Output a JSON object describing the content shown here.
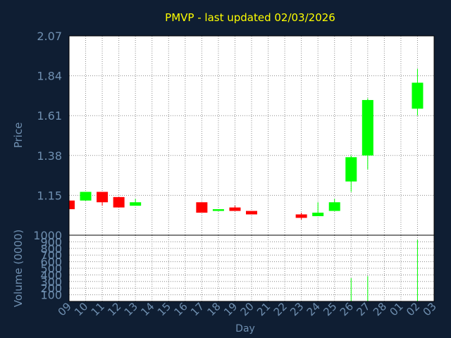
{
  "chart_data": [
    {
      "type": "candlestick",
      "title": "PMVP - last updated 02/03/2026",
      "ylabel": "Price",
      "ylim": [
        0.92,
        2.07
      ],
      "yticks": [
        "1.15",
        "1.38",
        "1.61",
        "1.84",
        "2.07"
      ],
      "categories": [
        "09",
        "10",
        "11",
        "12",
        "13",
        "14",
        "15",
        "16",
        "17",
        "18",
        "19",
        "20",
        "21",
        "22",
        "23",
        "24",
        "25",
        "26",
        "27",
        "28",
        "01",
        "02",
        "03"
      ],
      "grid": true,
      "candles": [
        {
          "day": "09",
          "open": 1.12,
          "close": 1.07,
          "high": 1.12,
          "low": 1.07
        },
        {
          "day": "10",
          "open": 1.12,
          "close": 1.17,
          "high": 1.17,
          "low": 1.12
        },
        {
          "day": "11",
          "open": 1.17,
          "close": 1.11,
          "high": 1.17,
          "low": 1.09
        },
        {
          "day": "12",
          "open": 1.14,
          "close": 1.08,
          "high": 1.14,
          "low": 1.08
        },
        {
          "day": "13",
          "open": 1.09,
          "close": 1.11,
          "high": 1.13,
          "low": 1.09
        },
        {
          "day": "17",
          "open": 1.11,
          "close": 1.05,
          "high": 1.11,
          "low": 1.05
        },
        {
          "day": "18",
          "open": 1.06,
          "close": 1.07,
          "high": 1.07,
          "low": 1.06
        },
        {
          "day": "19",
          "open": 1.08,
          "close": 1.06,
          "high": 1.09,
          "low": 1.06
        },
        {
          "day": "20",
          "open": 1.06,
          "close": 1.04,
          "high": 1.06,
          "low": 1.04
        },
        {
          "day": "23",
          "open": 1.04,
          "close": 1.02,
          "high": 1.05,
          "low": 1.01
        },
        {
          "day": "24",
          "open": 1.03,
          "close": 1.05,
          "high": 1.11,
          "low": 1.03
        },
        {
          "day": "25",
          "open": 1.06,
          "close": 1.11,
          "high": 1.13,
          "low": 1.06
        },
        {
          "day": "26",
          "open": 1.23,
          "close": 1.37,
          "high": 1.38,
          "low": 1.17
        },
        {
          "day": "27",
          "open": 1.38,
          "close": 1.7,
          "high": 1.71,
          "low": 1.3
        },
        {
          "day": "02",
          "open": 1.65,
          "close": 1.8,
          "high": 1.88,
          "low": 1.61
        }
      ]
    },
    {
      "type": "bar",
      "ylabel": "Volume (0000)",
      "ylim": [
        0,
        1000
      ],
      "yticks": [
        "100",
        "200",
        "300",
        "400",
        "500",
        "600",
        "700",
        "800",
        "900",
        "1000"
      ],
      "xlabel": "Day",
      "categories": [
        "09",
        "10",
        "11",
        "12",
        "13",
        "14",
        "15",
        "16",
        "17",
        "18",
        "19",
        "20",
        "21",
        "22",
        "23",
        "24",
        "25",
        "26",
        "27",
        "28",
        "01",
        "02",
        "03"
      ],
      "values": [
        0,
        0,
        0,
        0,
        0,
        0,
        0,
        0,
        0,
        0,
        0,
        0,
        0,
        0,
        0,
        0,
        0,
        350,
        380,
        0,
        0,
        930,
        0
      ],
      "grid": true
    }
  ],
  "colors": {
    "background": "#0f1e33",
    "plot": "#ffffff",
    "grid": "#8a8a8a",
    "up": "#00ff00",
    "down": "#ff0000",
    "text": "#6f8fb0",
    "title": "#ffff00",
    "axis": "#000000"
  }
}
